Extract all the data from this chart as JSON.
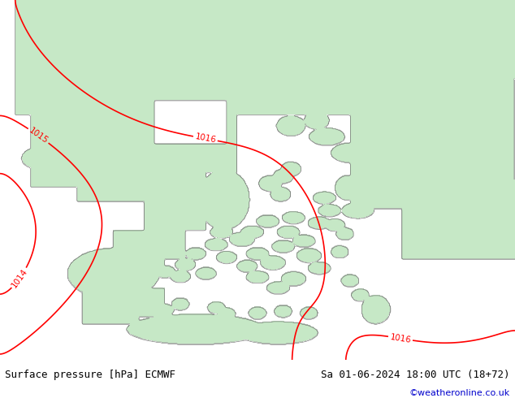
{
  "title_left": "Surface pressure [hPa] ECMWF",
  "title_right": "Sa 01-06-2024 18:00 UTC (18+72)",
  "credit": "©weatheronline.co.uk",
  "bottom_bar_color": "#d8d8d8",
  "background_color": "#ffffff",
  "sea_color": "#ffffff",
  "land_color_rgb": [
    0.78,
    0.91,
    0.78
  ],
  "contour_color": "#ff0000",
  "credit_color": "#0000cc",
  "figsize": [
    6.34,
    4.9
  ],
  "dpi": 100
}
